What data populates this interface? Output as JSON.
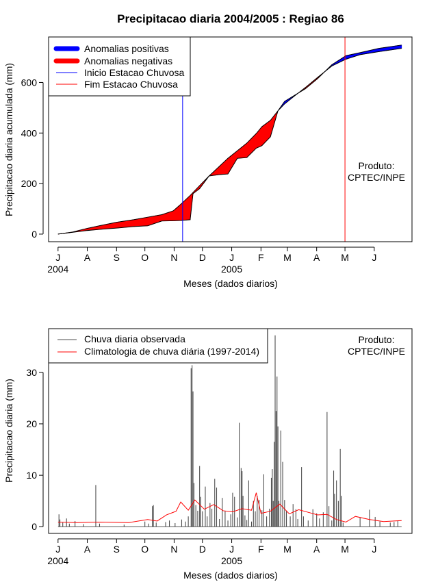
{
  "chart_data": [
    {
      "type": "area",
      "title": "Precipitacao diaria 2004/2005 : Regiao 86",
      "xlabel": "Meses (dados diarios)",
      "ylabel": "Precipitacao diaria acumulada (mm)",
      "ylim": [
        -30,
        780
      ],
      "yticks": [
        0,
        200,
        400,
        600
      ],
      "month_ticks": [
        "J",
        "A",
        "S",
        "O",
        "N",
        "D",
        "J",
        "F",
        "M",
        "A",
        "M",
        "J"
      ],
      "year_labels": [
        {
          "label": "2004",
          "month_index": 0
        },
        {
          "label": "2005",
          "month_index": 6
        }
      ],
      "x_day_range": [
        -10,
        375
      ],
      "legend": [
        {
          "label": "Anomalias positivas",
          "color": "#0000ff",
          "kind": "thick"
        },
        {
          "label": "Anomalias negativas",
          "color": "#ff0000",
          "kind": "thick"
        },
        {
          "label": "Inicio Estacao Chuvosa",
          "color": "#0000ff",
          "kind": "thin"
        },
        {
          "label": "Fim Estacao Chuvosa",
          "color": "#ff0000",
          "kind": "thin"
        }
      ],
      "annotation": [
        "Produto:",
        "CPTEC/INPE"
      ],
      "onset_day": 132,
      "end_day": 304,
      "climatology_cumulative": [
        {
          "day": 0,
          "value": 0
        },
        {
          "day": 15,
          "value": 8
        },
        {
          "day": 30,
          "value": 22
        },
        {
          "day": 45,
          "value": 34
        },
        {
          "day": 62,
          "value": 47
        },
        {
          "day": 80,
          "value": 57
        },
        {
          "day": 95,
          "value": 67
        },
        {
          "day": 110,
          "value": 77
        },
        {
          "day": 122,
          "value": 92
        },
        {
          "day": 130,
          "value": 118
        },
        {
          "day": 140,
          "value": 153
        },
        {
          "day": 150,
          "value": 192
        },
        {
          "day": 160,
          "value": 230
        },
        {
          "day": 170,
          "value": 265
        },
        {
          "day": 180,
          "value": 300
        },
        {
          "day": 190,
          "value": 330
        },
        {
          "day": 200,
          "value": 360
        },
        {
          "day": 210,
          "value": 398
        },
        {
          "day": 216,
          "value": 425
        },
        {
          "day": 225,
          "value": 450
        },
        {
          "day": 233,
          "value": 488
        },
        {
          "day": 240,
          "value": 515
        },
        {
          "day": 250,
          "value": 545
        },
        {
          "day": 262,
          "value": 580
        },
        {
          "day": 275,
          "value": 620
        },
        {
          "day": 290,
          "value": 665
        },
        {
          "day": 305,
          "value": 692
        },
        {
          "day": 320,
          "value": 710
        },
        {
          "day": 340,
          "value": 722
        },
        {
          "day": 364,
          "value": 735
        }
      ],
      "observed_cumulative": [
        {
          "day": 0,
          "value": 0
        },
        {
          "day": 15,
          "value": 7
        },
        {
          "day": 30,
          "value": 14
        },
        {
          "day": 45,
          "value": 19
        },
        {
          "day": 62,
          "value": 24
        },
        {
          "day": 80,
          "value": 30
        },
        {
          "day": 95,
          "value": 33
        },
        {
          "day": 110,
          "value": 52
        },
        {
          "day": 122,
          "value": 53
        },
        {
          "day": 130,
          "value": 54
        },
        {
          "day": 140,
          "value": 57
        },
        {
          "day": 143,
          "value": 160
        },
        {
          "day": 150,
          "value": 180
        },
        {
          "day": 160,
          "value": 230
        },
        {
          "day": 170,
          "value": 235
        },
        {
          "day": 180,
          "value": 238
        },
        {
          "day": 190,
          "value": 300
        },
        {
          "day": 200,
          "value": 303
        },
        {
          "day": 210,
          "value": 340
        },
        {
          "day": 216,
          "value": 350
        },
        {
          "day": 225,
          "value": 385
        },
        {
          "day": 233,
          "value": 488
        },
        {
          "day": 240,
          "value": 525
        },
        {
          "day": 250,
          "value": 548
        },
        {
          "day": 262,
          "value": 575
        },
        {
          "day": 275,
          "value": 615
        },
        {
          "day": 290,
          "value": 670
        },
        {
          "day": 305,
          "value": 706
        },
        {
          "day": 320,
          "value": 718
        },
        {
          "day": 340,
          "value": 735
        },
        {
          "day": 364,
          "value": 748
        }
      ]
    },
    {
      "type": "bar",
      "xlabel": "Meses (dados diarios)",
      "ylabel": "Precipitacao diaria (mm)",
      "ylim": [
        -1.3,
        38.5
      ],
      "yticks": [
        0,
        10,
        20,
        30
      ],
      "month_ticks": [
        "J",
        "A",
        "S",
        "O",
        "N",
        "D",
        "J",
        "F",
        "M",
        "A",
        "M",
        "J"
      ],
      "year_labels": [
        {
          "label": "2004",
          "month_index": 0
        },
        {
          "label": "2005",
          "month_index": 6
        }
      ],
      "x_day_range": [
        -10,
        375
      ],
      "legend": [
        {
          "label": "Chuva diaria observada",
          "color": "#4d4d4d"
        },
        {
          "label": "Climatologia de chuva diária (1997-2014)",
          "color": "#ff0000"
        }
      ],
      "annotation": [
        "Produto:",
        "CPTEC/INPE"
      ],
      "observed_daily": [
        {
          "day": 1,
          "value": 2.4
        },
        {
          "day": 2,
          "value": 1.4
        },
        {
          "day": 5,
          "value": 0.8
        },
        {
          "day": 9,
          "value": 1.6
        },
        {
          "day": 12,
          "value": 0.6
        },
        {
          "day": 18,
          "value": 1.1
        },
        {
          "day": 27,
          "value": 0.5
        },
        {
          "day": 40,
          "value": 8.1
        },
        {
          "day": 44,
          "value": 0.6
        },
        {
          "day": 70,
          "value": 0.4
        },
        {
          "day": 92,
          "value": 1.0
        },
        {
          "day": 96,
          "value": 0.6
        },
        {
          "day": 100,
          "value": 4.0
        },
        {
          "day": 101,
          "value": 4.2
        },
        {
          "day": 104,
          "value": 0.8
        },
        {
          "day": 114,
          "value": 0.9
        },
        {
          "day": 118,
          "value": 1.2
        },
        {
          "day": 124,
          "value": 0.7
        },
        {
          "day": 131,
          "value": 1.4
        },
        {
          "day": 135,
          "value": 1.0
        },
        {
          "day": 138,
          "value": 2.0
        },
        {
          "day": 141,
          "value": 30.8
        },
        {
          "day": 142,
          "value": 31.4
        },
        {
          "day": 143,
          "value": 26.3
        },
        {
          "day": 144,
          "value": 8.5
        },
        {
          "day": 146,
          "value": 4.2
        },
        {
          "day": 148,
          "value": 3.1
        },
        {
          "day": 150,
          "value": 11.8
        },
        {
          "day": 151,
          "value": 5.8
        },
        {
          "day": 153,
          "value": 3.0
        },
        {
          "day": 156,
          "value": 7.8
        },
        {
          "day": 158,
          "value": 2.0
        },
        {
          "day": 161,
          "value": 4.6
        },
        {
          "day": 163,
          "value": 3.5
        },
        {
          "day": 166,
          "value": 9.3
        },
        {
          "day": 168,
          "value": 7.6
        },
        {
          "day": 171,
          "value": 1.5
        },
        {
          "day": 174,
          "value": 5.6
        },
        {
          "day": 177,
          "value": 3.0
        },
        {
          "day": 180,
          "value": 1.2
        },
        {
          "day": 183,
          "value": 2.4
        },
        {
          "day": 185,
          "value": 6.6
        },
        {
          "day": 187,
          "value": 5.8
        },
        {
          "day": 190,
          "value": 1.8
        },
        {
          "day": 192,
          "value": 20.2
        },
        {
          "day": 194,
          "value": 11.4
        },
        {
          "day": 195,
          "value": 10.8
        },
        {
          "day": 196,
          "value": 6.0
        },
        {
          "day": 198,
          "value": 2.2
        },
        {
          "day": 200,
          "value": 1.3
        },
        {
          "day": 202,
          "value": 9.0
        },
        {
          "day": 205,
          "value": 1.0
        },
        {
          "day": 207,
          "value": 5.0
        },
        {
          "day": 209,
          "value": 3.0
        },
        {
          "day": 211,
          "value": 6.0
        },
        {
          "day": 213,
          "value": 5.2
        },
        {
          "day": 216,
          "value": 3.2
        },
        {
          "day": 218,
          "value": 10.2
        },
        {
          "day": 221,
          "value": 2.0
        },
        {
          "day": 224,
          "value": 3.5
        },
        {
          "day": 226,
          "value": 9.5
        },
        {
          "day": 227,
          "value": 11.2
        },
        {
          "day": 228,
          "value": 5.0
        },
        {
          "day": 229,
          "value": 16.5
        },
        {
          "day": 230,
          "value": 37.2
        },
        {
          "day": 231,
          "value": 22.5
        },
        {
          "day": 232,
          "value": 29.2
        },
        {
          "day": 233,
          "value": 19.5
        },
        {
          "day": 234,
          "value": 5.0
        },
        {
          "day": 236,
          "value": 18.7
        },
        {
          "day": 238,
          "value": 12.6
        },
        {
          "day": 240,
          "value": 5.2
        },
        {
          "day": 242,
          "value": 3.0
        },
        {
          "day": 246,
          "value": 2.0
        },
        {
          "day": 249,
          "value": 4.4
        },
        {
          "day": 252,
          "value": 3.4
        },
        {
          "day": 254,
          "value": 1.5
        },
        {
          "day": 258,
          "value": 11.6
        },
        {
          "day": 260,
          "value": 2.0
        },
        {
          "day": 265,
          "value": 1.2
        },
        {
          "day": 270,
          "value": 3.4
        },
        {
          "day": 274,
          "value": 2.6
        },
        {
          "day": 277,
          "value": 1.6
        },
        {
          "day": 281,
          "value": 2.8
        },
        {
          "day": 285,
          "value": 22.3
        },
        {
          "day": 287,
          "value": 4.0
        },
        {
          "day": 290,
          "value": 1.2
        },
        {
          "day": 292,
          "value": 10.9
        },
        {
          "day": 293,
          "value": 6.4
        },
        {
          "day": 295,
          "value": 9.0
        },
        {
          "day": 297,
          "value": 5.0
        },
        {
          "day": 299,
          "value": 15.1
        },
        {
          "day": 300,
          "value": 6.0
        },
        {
          "day": 302,
          "value": 0.8
        },
        {
          "day": 320,
          "value": 1.8
        },
        {
          "day": 330,
          "value": 3.3
        },
        {
          "day": 336,
          "value": 1.9
        },
        {
          "day": 341,
          "value": 1.0
        },
        {
          "day": 352,
          "value": 0.8
        },
        {
          "day": 356,
          "value": 0.9
        },
        {
          "day": 360,
          "value": 1.1
        }
      ],
      "climatology_daily": [
        {
          "day": 0,
          "value": 0.9
        },
        {
          "day": 20,
          "value": 0.8
        },
        {
          "day": 45,
          "value": 0.9
        },
        {
          "day": 75,
          "value": 0.8
        },
        {
          "day": 95,
          "value": 1.4
        },
        {
          "day": 105,
          "value": 1.1
        },
        {
          "day": 115,
          "value": 2.3
        },
        {
          "day": 125,
          "value": 3.0
        },
        {
          "day": 130,
          "value": 4.8
        },
        {
          "day": 138,
          "value": 3.2
        },
        {
          "day": 145,
          "value": 5.2
        },
        {
          "day": 155,
          "value": 3.4
        },
        {
          "day": 165,
          "value": 4.3
        },
        {
          "day": 175,
          "value": 3.1
        },
        {
          "day": 185,
          "value": 2.9
        },
        {
          "day": 195,
          "value": 3.5
        },
        {
          "day": 205,
          "value": 3.2
        },
        {
          "day": 210,
          "value": 6.6
        },
        {
          "day": 215,
          "value": 2.6
        },
        {
          "day": 225,
          "value": 3.0
        },
        {
          "day": 235,
          "value": 4.4
        },
        {
          "day": 245,
          "value": 2.5
        },
        {
          "day": 255,
          "value": 3.3
        },
        {
          "day": 265,
          "value": 2.8
        },
        {
          "day": 275,
          "value": 2.3
        },
        {
          "day": 285,
          "value": 2.4
        },
        {
          "day": 295,
          "value": 1.4
        },
        {
          "day": 305,
          "value": 0.9
        },
        {
          "day": 315,
          "value": 2.0
        },
        {
          "day": 330,
          "value": 1.4
        },
        {
          "day": 345,
          "value": 1.0
        },
        {
          "day": 364,
          "value": 1.2
        }
      ]
    }
  ]
}
